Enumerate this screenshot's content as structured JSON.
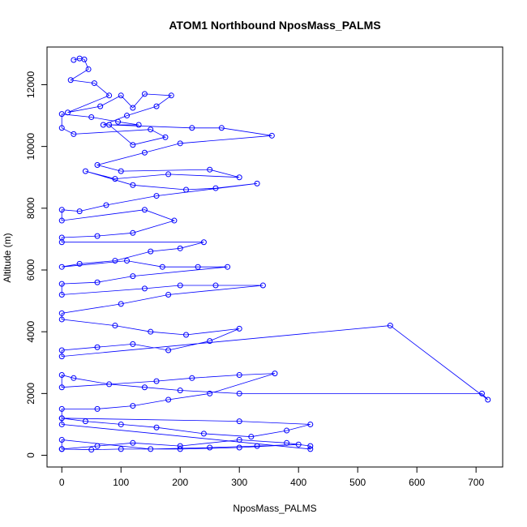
{
  "chart_data": {
    "type": "line",
    "title": "ATOM1 Northbound NposMass_PALMS",
    "xlabel": "NposMass_PALMS",
    "ylabel": "Altitude (m)",
    "xlim": [
      -25,
      745
    ],
    "ylim": [
      -380,
      13220
    ],
    "x_ticks": [
      0,
      100,
      200,
      300,
      400,
      500,
      600,
      700
    ],
    "y_ticks": [
      0,
      2000,
      4000,
      6000,
      8000,
      10000,
      12000
    ],
    "series_color": "#0000ff",
    "marker": "open-circle",
    "grid": false,
    "series": [
      {
        "x": [
          20,
          30,
          38,
          45,
          15,
          55,
          80,
          10,
          65,
          100,
          120,
          140,
          185,
          160,
          110,
          70,
          130,
          95,
          50,
          0,
          0,
          20,
          150,
          175,
          120,
          80,
          220,
          270,
          355,
          200,
          140,
          60,
          100,
          250,
          300,
          180,
          90,
          40,
          120,
          210,
          260,
          330,
          160,
          75,
          30,
          0,
          0,
          140,
          190,
          120,
          60,
          0,
          0,
          240,
          200,
          150,
          90,
          30,
          0,
          110,
          170,
          230,
          280,
          120,
          60,
          0,
          0,
          140,
          200,
          260,
          340,
          180,
          100,
          0,
          0,
          90,
          150,
          210,
          300,
          250,
          180,
          120,
          60,
          0,
          0,
          555,
          720,
          710,
          300,
          200,
          140,
          80,
          20,
          0,
          0,
          160,
          220,
          300,
          360,
          250,
          180,
          120,
          60,
          0,
          0,
          300,
          420,
          380,
          320,
          240,
          160,
          100,
          40,
          0,
          0,
          420,
          420,
          380,
          300,
          200,
          120,
          60,
          0,
          0,
          150,
          250,
          330,
          400,
          300,
          200,
          100,
          50,
          0
        ],
        "y": [
          12800,
          12850,
          12820,
          12500,
          12150,
          12050,
          11650,
          11100,
          11300,
          11650,
          11250,
          11700,
          11650,
          11300,
          11000,
          10700,
          10700,
          10800,
          10950,
          11050,
          10600,
          10400,
          10550,
          10300,
          10050,
          10700,
          10600,
          10600,
          10350,
          10100,
          9800,
          9400,
          9200,
          9250,
          9000,
          9100,
          8950,
          9200,
          8750,
          8600,
          8650,
          8800,
          8400,
          8100,
          7900,
          7950,
          7600,
          7950,
          7600,
          7200,
          7100,
          7050,
          6900,
          6900,
          6700,
          6600,
          6300,
          6200,
          6100,
          6300,
          6100,
          6100,
          6100,
          5800,
          5600,
          5550,
          5200,
          5400,
          5500,
          5500,
          5500,
          5200,
          4900,
          4600,
          4400,
          4200,
          4000,
          3900,
          4100,
          3700,
          3400,
          3600,
          3500,
          3400,
          3200,
          4200,
          1800,
          2000,
          2000,
          2100,
          2200,
          2300,
          2500,
          2600,
          2200,
          2400,
          2500,
          2600,
          2650,
          2000,
          1800,
          1600,
          1500,
          1500,
          1200,
          1100,
          1000,
          800,
          600,
          700,
          900,
          1000,
          1100,
          1200,
          1000,
          200,
          300,
          400,
          500,
          300,
          400,
          300,
          200,
          500,
          200,
          250,
          300,
          350,
          250,
          200,
          200,
          180,
          200
        ]
      }
    ]
  }
}
